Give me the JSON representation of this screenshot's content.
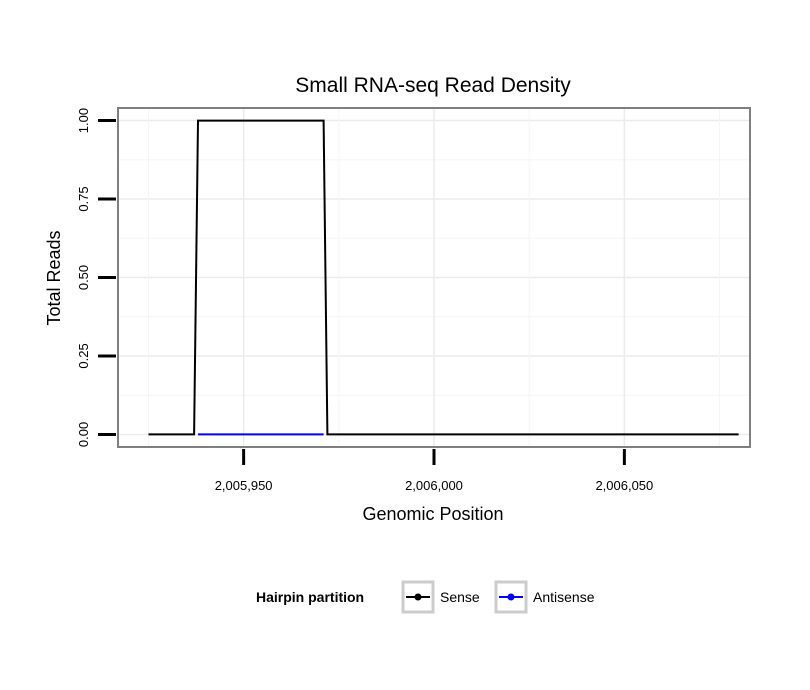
{
  "chart_data": {
    "type": "line",
    "title": "Small RNA-seq Read Density",
    "xlabel": "Genomic Position",
    "ylabel": "Total Reads",
    "xlim": [
      2005917,
      2006083
    ],
    "ylim": [
      -0.04,
      1.04
    ],
    "x_ticks": [
      2005950,
      2006000,
      2006050
    ],
    "x_tick_labels": [
      "2,005,950",
      "2,006,000",
      "2,006,050"
    ],
    "y_ticks": [
      0,
      0.25,
      0.5,
      0.75,
      1.0
    ],
    "y_tick_labels": [
      "0.00",
      "0.25",
      "0.50",
      "0.75",
      "1.00"
    ],
    "grid": true,
    "legend": {
      "title": "Hairpin partition",
      "position": "bottom"
    },
    "series": [
      {
        "name": "Sense",
        "color": "#000000",
        "x": [
          2005925,
          2005937,
          2005938,
          2005971,
          2005972,
          2006080
        ],
        "y": [
          0,
          0,
          1,
          1,
          0,
          0
        ]
      },
      {
        "name": "Antisense",
        "color": "#0000ff",
        "x": [
          2005938,
          2005971
        ],
        "y": [
          0,
          0
        ]
      }
    ]
  }
}
